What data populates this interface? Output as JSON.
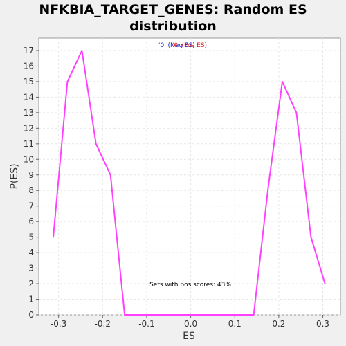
{
  "chart_data": {
    "type": "line",
    "title": "NFKBIA_TARGET_GENES: Random ES distribution",
    "xlabel": "ES",
    "ylabel": "P(ES)",
    "xlim": [
      -0.345,
      0.34
    ],
    "ylim": [
      0,
      17.8
    ],
    "xticks": [
      -0.3,
      -0.2,
      -0.1,
      0.0,
      0.1,
      0.2,
      0.3
    ],
    "xtick_labels": [
      "-0.3",
      "-0.2",
      "-0.1",
      "0.0",
      "0.1",
      "0.2",
      "0.3"
    ],
    "yticks": [
      0,
      1,
      2,
      3,
      4,
      5,
      6,
      7,
      8,
      9,
      10,
      11,
      12,
      13,
      14,
      15,
      16,
      17
    ],
    "grid": true,
    "legend": {
      "neg_label": "'0' (Neg ES)",
      "pos_label": "'0' (Pos ES)",
      "neg_color": "#2020c0",
      "pos_color": "#e02020",
      "placement": "top-center"
    },
    "annotation": "Sets with pos scores: 43%",
    "series": [
      {
        "color": "#ff40ff",
        "x": [
          -0.312,
          -0.28,
          -0.247,
          -0.215,
          -0.182,
          -0.15,
          0.143,
          0.175,
          0.208,
          0.24,
          0.273,
          0.305
        ],
        "values": [
          5,
          15,
          17,
          11,
          9,
          0,
          0,
          8,
          15,
          13,
          5,
          2
        ]
      }
    ]
  }
}
